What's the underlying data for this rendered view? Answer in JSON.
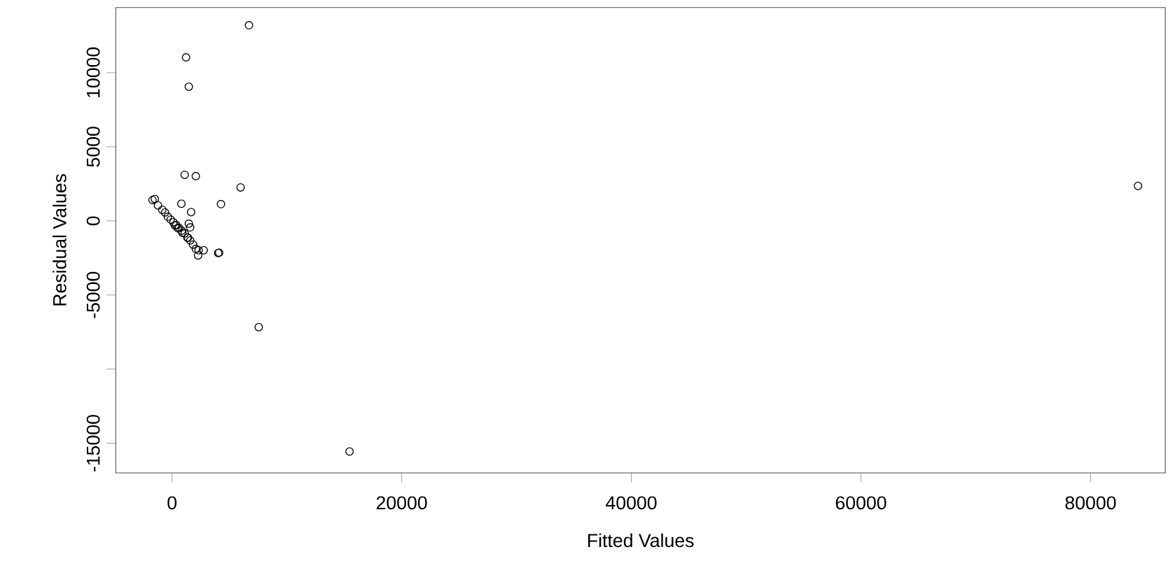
{
  "chart_data": {
    "type": "scatter",
    "xlabel": "Fitted Values",
    "ylabel": "Residual Values",
    "x": [
      6700,
      1220,
      1460,
      84130,
      1100,
      2070,
      5970,
      4260,
      4020,
      7550,
      15460,
      815,
      1660,
      1580,
      4100,
      2310,
      2760,
      2270,
      -1700,
      -1220,
      -850,
      -610,
      -370,
      -120,
      120,
      370,
      610,
      850,
      1100,
      1340,
      1580,
      1830,
      2070,
      1460,
      1380,
      -1500,
      250,
      500,
      900
    ],
    "values": [
      13200,
      11030,
      9050,
      2360,
      3110,
      3020,
      2260,
      1130,
      -2170,
      -7170,
      -15560,
      1160,
      590,
      -440,
      -2140,
      -1980,
      -1980,
      -2330,
      1410,
      1040,
      750,
      570,
      280,
      90,
      -90,
      -280,
      -470,
      -660,
      -850,
      -1130,
      -1320,
      -1600,
      -1890,
      -190,
      -1130,
      1480,
      -300,
      -500,
      -800
    ],
    "color": "#000000",
    "marker": "circle",
    "grid": false,
    "xlim": [
      -4900,
      86500
    ],
    "ylim": [
      -17000,
      14400
    ],
    "xticks": [
      0,
      20000,
      40000,
      60000,
      80000
    ],
    "yticks": [
      -15000,
      {
        "value": -10000,
        "label": null
      },
      -5000,
      0,
      5000,
      10000
    ]
  }
}
